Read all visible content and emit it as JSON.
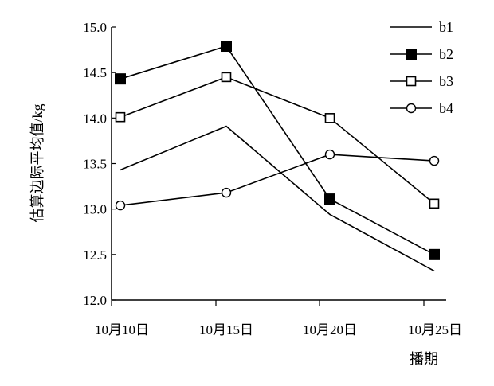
{
  "chart_data": {
    "type": "line",
    "title": "",
    "xlabel": "播期",
    "ylabel": "估算边际平均值/kg",
    "categories": [
      "10月10日",
      "10月15日",
      "10月20日",
      "10月25日"
    ],
    "ylim": [
      12.0,
      15.0
    ],
    "yticks": [
      "12.0",
      "12.5",
      "13.0",
      "13.5",
      "14.0",
      "14.5",
      "15.0"
    ],
    "grid": false,
    "legend_position": "top-right",
    "series": [
      {
        "name": "b1",
        "marker": "none",
        "values": [
          13.43,
          13.91,
          12.94,
          12.32
        ]
      },
      {
        "name": "b2",
        "marker": "filled-square",
        "values": [
          14.43,
          14.79,
          13.11,
          12.5
        ]
      },
      {
        "name": "b3",
        "marker": "open-square",
        "values": [
          14.01,
          14.45,
          14.0,
          13.06
        ]
      },
      {
        "name": "b4",
        "marker": "open-circle",
        "values": [
          13.04,
          13.18,
          13.6,
          13.53
        ]
      }
    ]
  }
}
